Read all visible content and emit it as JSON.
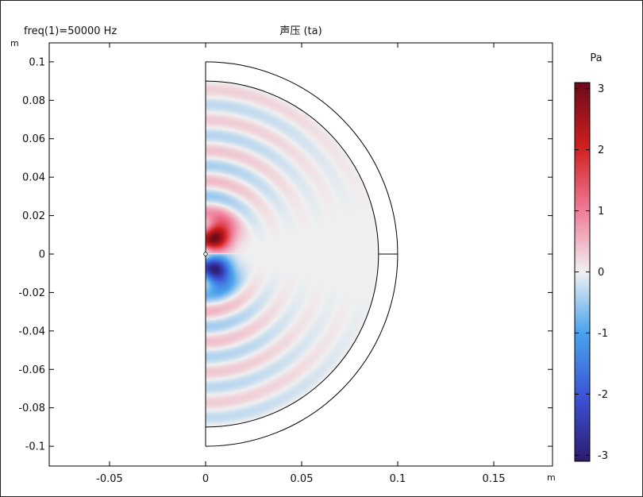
{
  "header": {
    "parameter_label": "freq(1)=50000 Hz",
    "title": "声压 (ta)"
  },
  "chart_data": {
    "type": "heatmap",
    "title": "声压 (ta)",
    "subtitle": "freq(1)=50000 Hz",
    "xlabel": "m",
    "ylabel": "m",
    "xlim": [
      -0.08,
      0.18
    ],
    "ylim": [
      -0.11,
      0.11
    ],
    "x_ticks": [
      -0.05,
      0,
      0.05,
      0.1,
      0.15
    ],
    "x_tick_labels": [
      "-0.05",
      "0",
      "0.05",
      "0.1",
      "0.15"
    ],
    "y_ticks": [
      0.1,
      0.08,
      0.06,
      0.04,
      0.02,
      0,
      -0.02,
      -0.04,
      -0.06,
      -0.08,
      -0.1
    ],
    "y_tick_labels": [
      "0.1",
      "0.08",
      "0.06",
      "0.04",
      "0.02",
      "0",
      "-0.02",
      "-0.04",
      "-0.06",
      "-0.08",
      "-0.1"
    ],
    "domain": {
      "shape": "half-disk",
      "inner_radius_m": 0.09,
      "outer_radius_m": 0.1,
      "source_center_m": [
        0,
        0
      ]
    },
    "field": {
      "wavelength_m": 0.0158,
      "near_field_peak_pa": 3.1,
      "far_field_amplitude_pa": 0.45,
      "near_field_center_y_m": 0.01
    },
    "colorbar": {
      "label": "Pa",
      "min": -3.1,
      "max": 3.1,
      "ticks": [
        3,
        2,
        1,
        0,
        -1,
        -2,
        -3
      ],
      "tick_labels": [
        "3",
        "2",
        "1",
        "0",
        "-1",
        "-2",
        "-3"
      ],
      "colors": [
        "#2e1a6e",
        "#3b53d6",
        "#4aa3ec",
        "#f0f0f0",
        "#f07d9a",
        "#d01f1f",
        "#6b0a1a"
      ]
    }
  }
}
